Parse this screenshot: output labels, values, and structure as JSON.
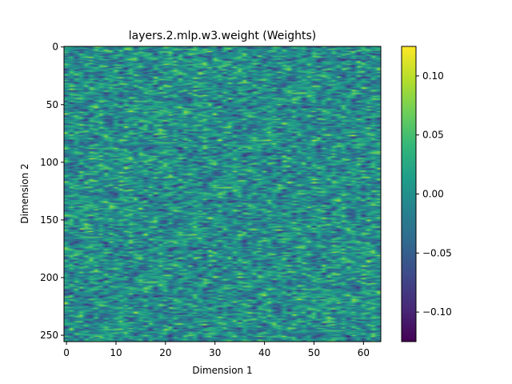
{
  "chart_data": {
    "type": "heatmap",
    "title": "layers.2.mlp.w3.weight (Weights)",
    "xlabel": "Dimension 1",
    "ylabel": "Dimension 2",
    "columns": 64,
    "rows": 256,
    "xlim": [
      -0.5,
      63.5
    ],
    "ylim": [
      255.5,
      -0.5
    ],
    "x_ticks": [
      0,
      10,
      20,
      30,
      40,
      50,
      60
    ],
    "y_ticks": [
      0,
      50,
      100,
      150,
      200,
      250
    ],
    "colorbar": {
      "colormap": "viridis",
      "vmin": -0.125,
      "vmax": 0.125,
      "ticks": [
        0.1,
        0.05,
        0.0,
        -0.05,
        -0.1
      ],
      "tick_labels": [
        "0.10",
        "0.05",
        "0.00",
        "−0.05",
        "−0.10"
      ]
    },
    "value_distribution": "dense pseudo-random weights in approx [-0.125, 0.125], mostly near 0, with horizontal streak texture"
  },
  "colors": {
    "viridis_stops": [
      "#440154",
      "#482878",
      "#3e4989",
      "#31688e",
      "#26828e",
      "#1f9e89",
      "#35b779",
      "#6ece58",
      "#b5de2b",
      "#fde725"
    ]
  }
}
